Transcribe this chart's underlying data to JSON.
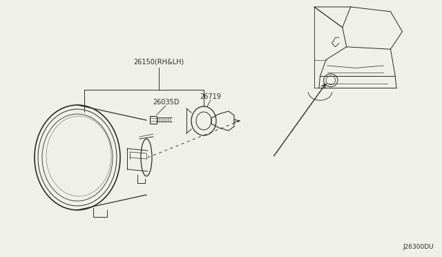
{
  "bg_color": "#f0f0eb",
  "line_color": "#2a2a2a",
  "text_color": "#2a2a2a",
  "diagram_code": "J26300DU",
  "part_26150_label": "26150(RH&LH)",
  "part_26035D_label": "26035D",
  "part_26719_label": "26719",
  "figsize": [
    6.4,
    3.72
  ],
  "dpi": 100
}
